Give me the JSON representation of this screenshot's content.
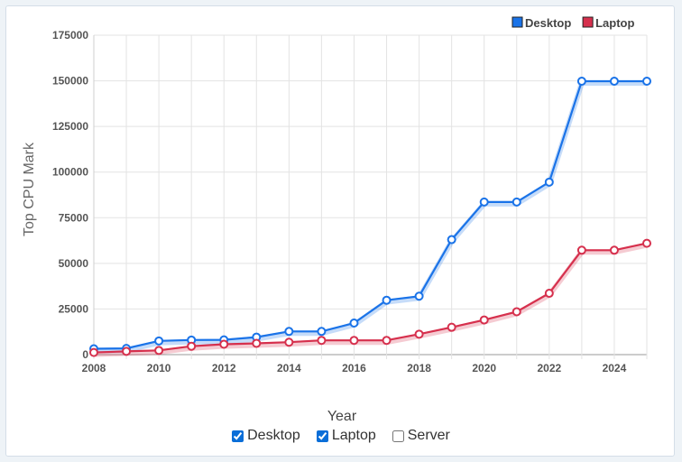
{
  "chart_data": {
    "type": "line",
    "xlabel": "Year",
    "ylabel": "Top CPU Mark",
    "ylim": [
      0,
      175000
    ],
    "xlim": [
      2008,
      2025
    ],
    "yticks": [
      "0",
      "25000",
      "50000",
      "75000",
      "100000",
      "125000",
      "150000",
      "175000"
    ],
    "xticks": [
      "2008",
      "2010",
      "2012",
      "2014",
      "2016",
      "2018",
      "2020",
      "2022",
      "2024"
    ],
    "grid": true,
    "legend_position": "top-right",
    "x": [
      2008,
      2009,
      2010,
      2011,
      2012,
      2013,
      2014,
      2015,
      2016,
      2017,
      2018,
      2019,
      2020,
      2021,
      2022,
      2023,
      2024,
      2025
    ],
    "series": [
      {
        "name": "Desktop",
        "color": "#1a73e8",
        "values": [
          3200,
          3400,
          7500,
          8000,
          8100,
          9600,
          12700,
          12700,
          17300,
          29800,
          32000,
          63000,
          83600,
          83600,
          94500,
          149800,
          149800,
          149800
        ]
      },
      {
        "name": "Laptop",
        "color": "#d6304d",
        "values": [
          1200,
          1800,
          2300,
          4600,
          5700,
          6200,
          6800,
          7800,
          7800,
          7800,
          11200,
          15000,
          19000,
          23500,
          33600,
          57200,
          57200,
          61000
        ]
      }
    ]
  },
  "toggles": [
    {
      "label": "Desktop",
      "checked": true
    },
    {
      "label": "Laptop",
      "checked": true
    },
    {
      "label": "Server",
      "checked": false
    }
  ]
}
